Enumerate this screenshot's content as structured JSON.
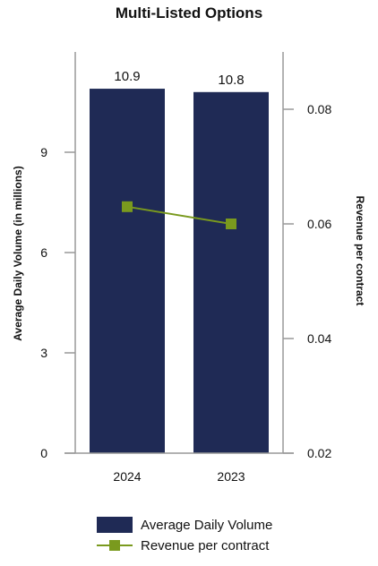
{
  "chart_data": {
    "type": "bar",
    "title": "Multi-Listed Options",
    "categories": [
      "2024",
      "2023"
    ],
    "series": [
      {
        "name": "Average Daily Volume",
        "type": "bar",
        "axis": "left",
        "values": [
          10.9,
          10.8
        ],
        "data_labels": [
          "10.9",
          "10.8"
        ],
        "color": "#1f2a55"
      },
      {
        "name": "Revenue per contract",
        "type": "line",
        "axis": "right",
        "values": [
          0.063,
          0.06
        ],
        "color": "#7a9a1e"
      }
    ],
    "y_left": {
      "label": "Average Daily Volume (in millions)",
      "min": 0,
      "max": 12,
      "ticks": [
        0,
        3,
        6,
        9
      ],
      "tick_labels": [
        "0",
        "3",
        "6",
        "9"
      ]
    },
    "y_right": {
      "label": "Revenue per contract",
      "min": 0.02,
      "max": 0.09,
      "ticks": [
        0.02,
        0.04,
        0.06,
        0.08
      ],
      "tick_labels": [
        "0.02",
        "0.04",
        "0.06",
        "0.08"
      ]
    },
    "grid": false,
    "legend_position": "bottom"
  }
}
